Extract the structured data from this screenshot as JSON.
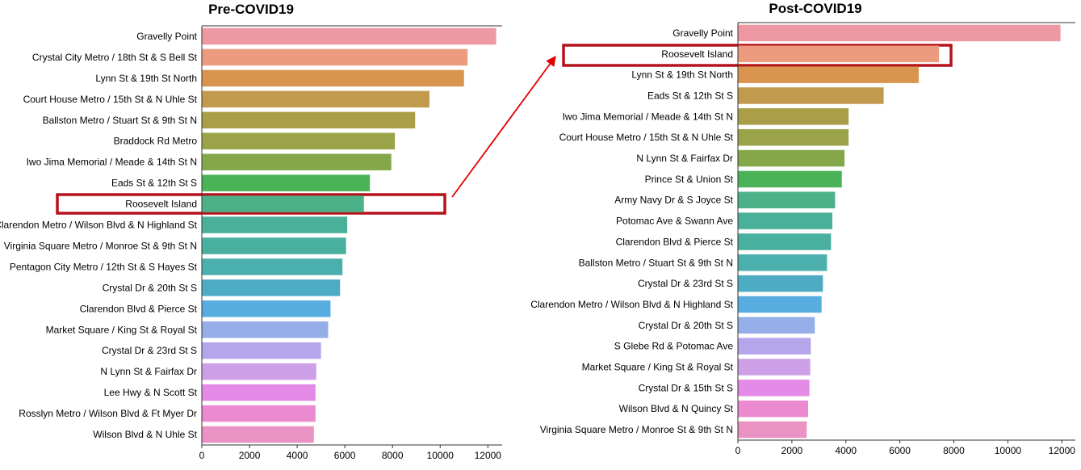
{
  "chart_data": [
    {
      "type": "bar",
      "orientation": "horizontal",
      "title": "Pre-COVID19",
      "xlabel": "",
      "ylabel": "",
      "xlim": [
        0,
        12600
      ],
      "xticks": [
        0,
        2000,
        4000,
        6000,
        8000,
        10000,
        12000
      ],
      "highlight": "Roosevelt Island",
      "categories": [
        "Gravelly Point",
        "Crystal City Metro / 18th St & S Bell St",
        "Lynn St & 19th St North",
        "Court House Metro / 15th St & N Uhle St",
        "Ballston Metro / Stuart St & 9th St N",
        "Braddock Rd Metro",
        "Iwo Jima Memorial / Meade & 14th St N",
        "Eads St & 12th St S",
        "Roosevelt Island",
        "Clarendon Metro / Wilson Blvd & N Highland St",
        "Virginia Square Metro / Monroe St & 9th St N",
        "Pentagon City Metro / 12th St & S Hayes St",
        "Crystal Dr & 20th St S",
        "Clarendon Blvd & Pierce St",
        "Market Square / King St & Royal St",
        "Crystal Dr & 23rd St S",
        "N Lynn St & Fairfax Dr",
        "Lee Hwy & N Scott St",
        "Rosslyn Metro / Wilson Blvd & Ft Myer Dr",
        "Wilson Blvd & N Uhle St"
      ],
      "values": [
        12350,
        11150,
        11000,
        9550,
        8950,
        8100,
        7950,
        7050,
        6800,
        6100,
        6050,
        5900,
        5800,
        5400,
        5300,
        5000,
        4800,
        4770,
        4770,
        4700
      ],
      "colors": [
        "#ee98a4",
        "#ec9b7f",
        "#d99550",
        "#c19a4d",
        "#aa9e48",
        "#9ba348",
        "#84a849",
        "#4ab357",
        "#4cb188",
        "#4ab09a",
        "#49af9f",
        "#4aafad",
        "#4dacc4",
        "#58ade0",
        "#95aee8",
        "#b5a6ec",
        "#cd9fe6",
        "#e38be6",
        "#eb8ad0",
        "#e992c3"
      ]
    },
    {
      "type": "bar",
      "orientation": "horizontal",
      "title": "Post-COVID19",
      "xlabel": "",
      "ylabel": "",
      "xlim": [
        0,
        12500
      ],
      "xticks": [
        0,
        2000,
        4000,
        6000,
        8000,
        10000,
        12000
      ],
      "highlight": "Roosevelt Island",
      "categories": [
        "Gravelly Point",
        "Roosevelt Island",
        "Lynn St & 19th St North",
        "Eads St & 12th St S",
        "Iwo Jima Memorial / Meade & 14th St N",
        "Court House Metro / 15th St & N Uhle St",
        "N Lynn St & Fairfax Dr",
        "Prince St & Union St",
        "Army Navy Dr & S Joyce St",
        "Potomac Ave & Swann Ave",
        "Clarendon Blvd & Pierce St",
        "Ballston Metro / Stuart St & 9th St N",
        "Crystal Dr & 23rd St S",
        "Clarendon Metro / Wilson Blvd & N Highland St",
        "Crystal Dr & 20th St S",
        "S Glebe Rd & Potomac Ave",
        "Market Square / King St & Royal St",
        "Crystal Dr & 15th St S",
        "Wilson Blvd & N Quincy St",
        "Virginia Square Metro / Monroe St & 9th St N"
      ],
      "values": [
        11950,
        7450,
        6700,
        5400,
        4100,
        4100,
        3950,
        3850,
        3600,
        3500,
        3450,
        3300,
        3150,
        3100,
        2850,
        2700,
        2680,
        2650,
        2600,
        2550
      ],
      "colors": [
        "#ee98a4",
        "#ec9b7f",
        "#d99550",
        "#c19a4d",
        "#aa9e48",
        "#9ba348",
        "#84a849",
        "#4ab357",
        "#4cb188",
        "#4ab09a",
        "#49af9f",
        "#4aafad",
        "#4dacc4",
        "#58ade0",
        "#95aee8",
        "#b5a6ec",
        "#cd9fe6",
        "#e38be6",
        "#eb8ad0",
        "#e992c3"
      ]
    }
  ],
  "annotation_color": "#b5121b"
}
